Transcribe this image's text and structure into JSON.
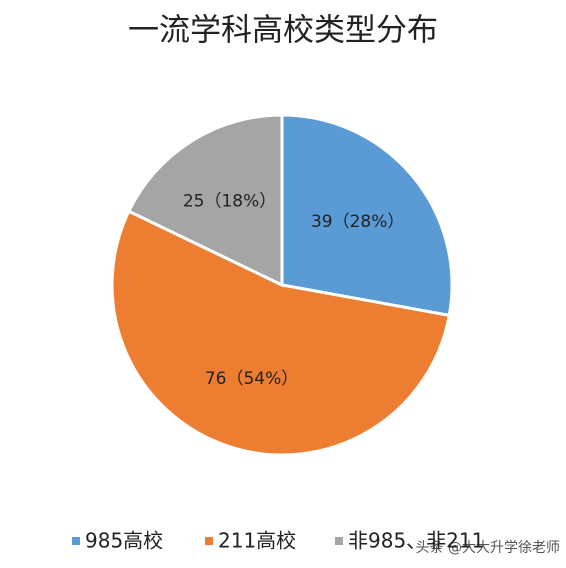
{
  "chart_data": {
    "type": "pie",
    "title": "一流学科高校类型分布",
    "categories": [
      "985高校",
      "211高校",
      "非985、非211"
    ],
    "values": [
      39,
      76,
      25
    ],
    "value_labels": [
      "39（28%）",
      "76（54%）",
      "25（18%）"
    ],
    "colors": [
      "#5b9bd5",
      "#ed7d31",
      "#a5a5a5"
    ],
    "legend": "bottom"
  },
  "watermark": "头条 @大大升学徐老师"
}
